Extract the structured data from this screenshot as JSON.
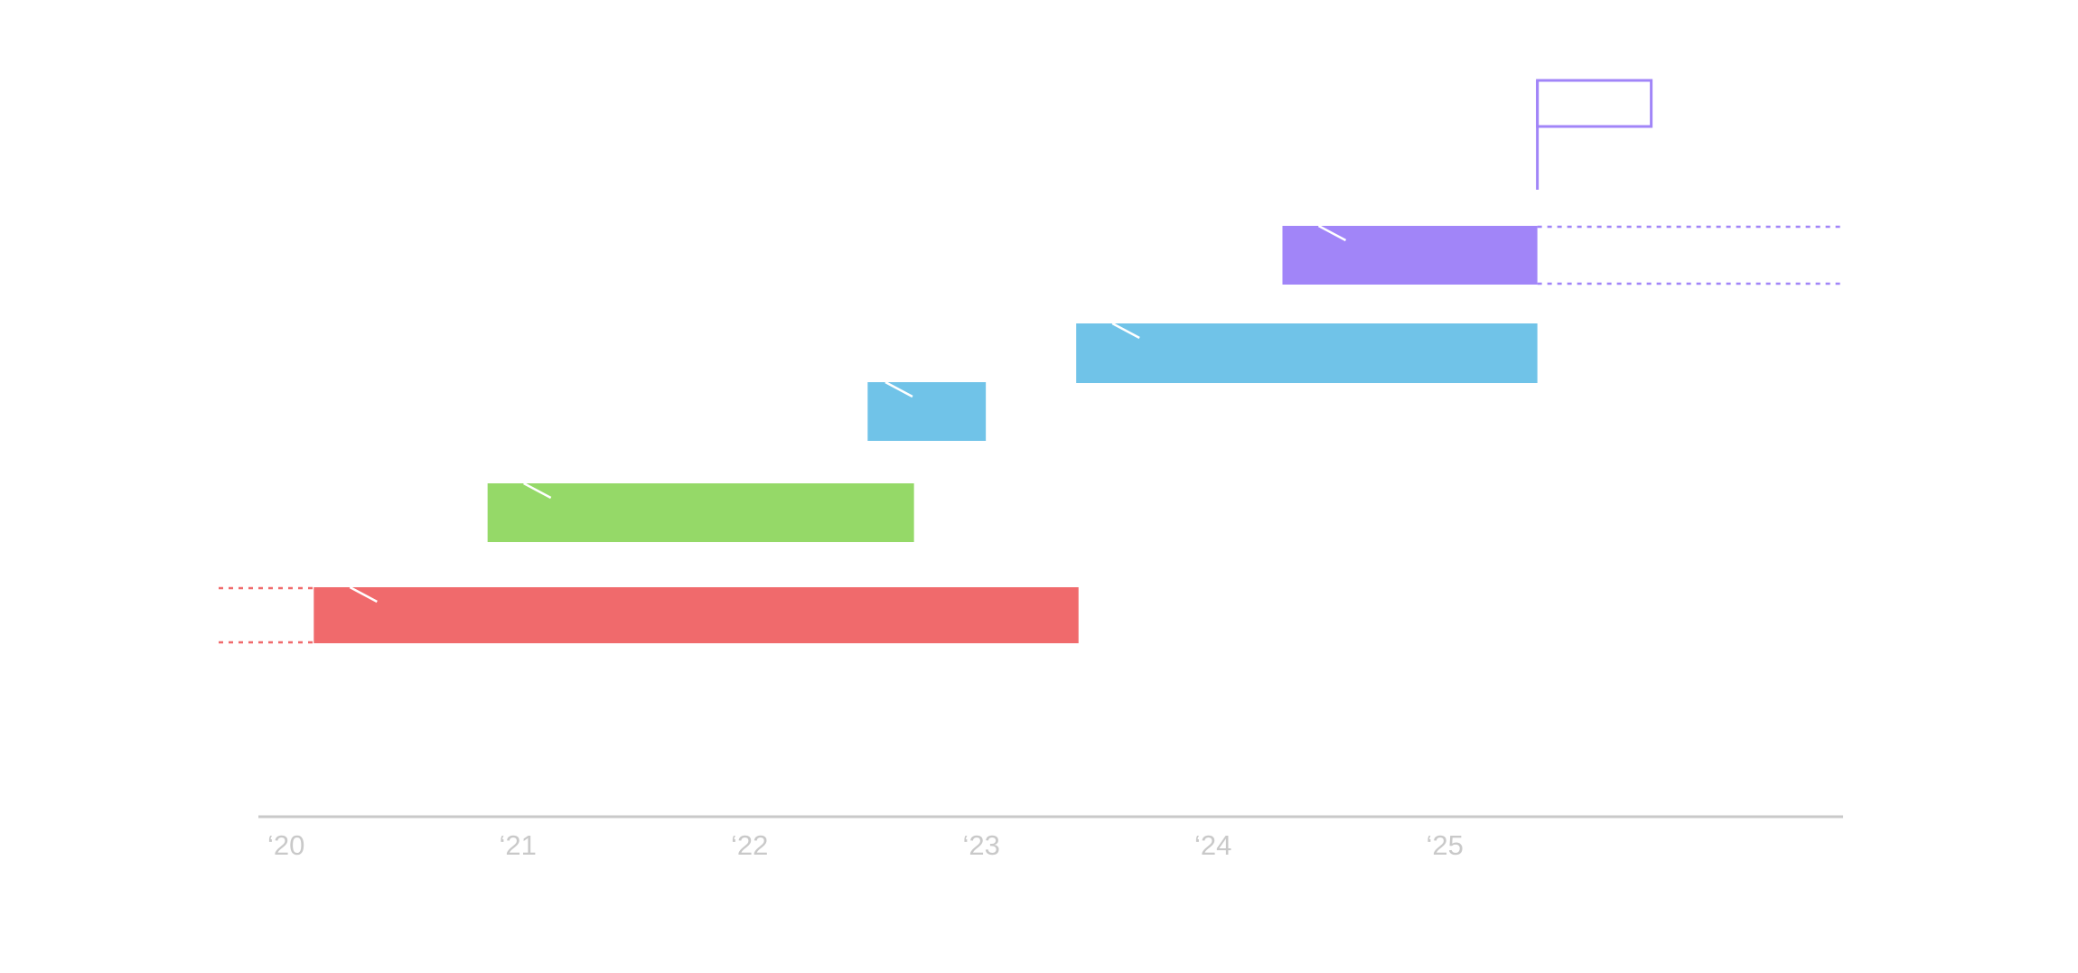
{
  "chart_data": {
    "type": "bar",
    "subtype": "timeline",
    "grid": false,
    "legend": "none",
    "x_ticks": [
      "‘20",
      "‘21",
      "‘22",
      "‘23",
      "‘24",
      "‘25"
    ],
    "xlim": [
      2020.0,
      2026.9
    ],
    "tasks": [
      {
        "start": 2020.2,
        "end": 2023.5,
        "color": "#f06a6c",
        "extends_before": true,
        "extends_after": false
      },
      {
        "start": 2020.95,
        "end": 2022.79,
        "color": "#95d968",
        "extends_before": false,
        "extends_after": false
      },
      {
        "start": 2022.59,
        "end": 2023.1,
        "color": "#70c3e8",
        "extends_before": false,
        "extends_after": false
      },
      {
        "start": 2023.49,
        "end": 2025.48,
        "color": "#70c3e8",
        "extends_before": false,
        "extends_after": false
      },
      {
        "start": 2024.38,
        "end": 2025.48,
        "color": "#a185f8",
        "extends_before": false,
        "extends_after": true
      }
    ],
    "milestone": {
      "x": 2025.48,
      "color": "#a185f8",
      "shape": "flag"
    },
    "axis_color": "#c9c9c9"
  }
}
